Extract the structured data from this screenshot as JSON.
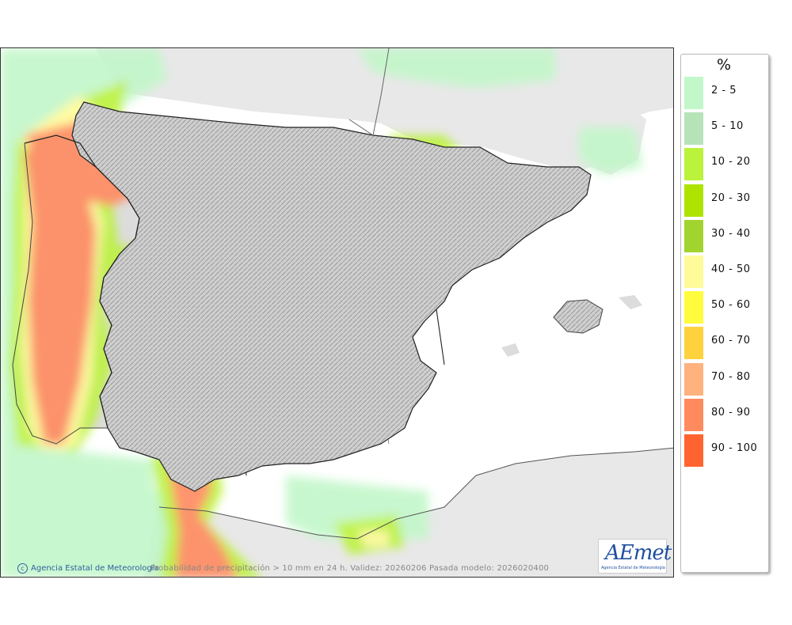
{
  "map": {
    "credit": "Agencia Estatal de Meteorología",
    "caption": "Probabilidad de precipitación > 10 mm en 24 h. Validez: 20260206 Pasada modelo: 2026020400",
    "logo_text": "AEmet",
    "logo_subtext": "Agencia Estatal de Meteorología"
  },
  "legend": {
    "unit": "%",
    "items": [
      {
        "label": "2 - 5",
        "color": "#c2f7c9"
      },
      {
        "label": "5 - 10",
        "color": "#b6e3b7"
      },
      {
        "label": "10 - 20",
        "color": "#bbf23b"
      },
      {
        "label": "20 - 30",
        "color": "#aee300"
      },
      {
        "label": "30 - 40",
        "color": "#a2d42f"
      },
      {
        "label": "40 - 50",
        "color": "#fffb99"
      },
      {
        "label": "50 - 60",
        "color": "#fffc3d"
      },
      {
        "label": "60 - 70",
        "color": "#ffd23d"
      },
      {
        "label": "70 - 80",
        "color": "#ffb17e"
      },
      {
        "label": "80 - 90",
        "color": "#ff8a5e"
      },
      {
        "label": "90 - 100",
        "color": "#ff6430"
      }
    ]
  }
}
